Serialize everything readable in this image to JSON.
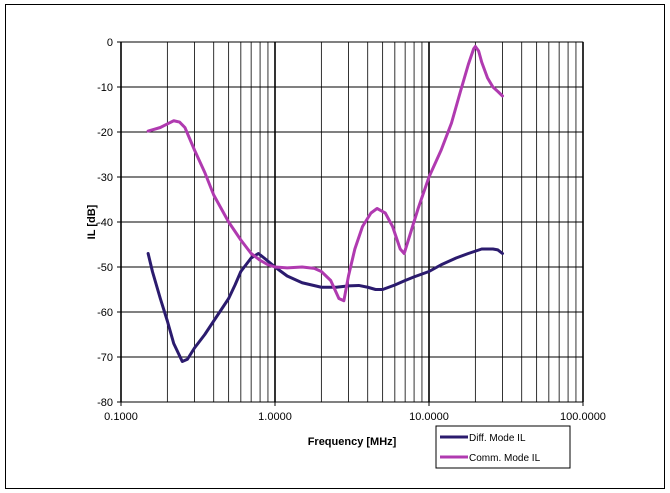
{
  "chart_data": {
    "type": "line",
    "xscale": "log",
    "xlim": [
      0.1,
      100
    ],
    "ylim": [
      -80,
      0
    ],
    "xlabel": "Frequency [MHz]",
    "ylabel": "IL [dB]",
    "grid": true,
    "legend_position": "bottom-right",
    "x_tick_labels": [
      "0.1000",
      "1.0000",
      "10.0000",
      "100.0000"
    ],
    "x_tick_values": [
      0.1,
      1,
      10,
      100
    ],
    "y_ticks": [
      0,
      -10,
      -20,
      -30,
      -40,
      -50,
      -60,
      -70,
      -80
    ],
    "series": [
      {
        "name": "Diff. Mode IL",
        "color": "#2b1b6e",
        "points": [
          [
            0.15,
            -47
          ],
          [
            0.16,
            -51
          ],
          [
            0.18,
            -57
          ],
          [
            0.2,
            -62
          ],
          [
            0.22,
            -67
          ],
          [
            0.25,
            -71
          ],
          [
            0.27,
            -70.5
          ],
          [
            0.3,
            -68
          ],
          [
            0.35,
            -65
          ],
          [
            0.4,
            -62
          ],
          [
            0.5,
            -57
          ],
          [
            0.55,
            -54
          ],
          [
            0.6,
            -51
          ],
          [
            0.7,
            -48
          ],
          [
            0.78,
            -47
          ],
          [
            0.85,
            -48
          ],
          [
            1.0,
            -50
          ],
          [
            1.2,
            -52
          ],
          [
            1.5,
            -53.5
          ],
          [
            2.0,
            -54.5
          ],
          [
            2.5,
            -54.5
          ],
          [
            3.0,
            -54.2
          ],
          [
            3.5,
            -54.1
          ],
          [
            4.0,
            -54.5
          ],
          [
            4.5,
            -55
          ],
          [
            5.0,
            -55
          ],
          [
            6.0,
            -54
          ],
          [
            7.0,
            -53
          ],
          [
            8.0,
            -52.2
          ],
          [
            10.0,
            -51
          ],
          [
            12.0,
            -49.5
          ],
          [
            15.0,
            -48
          ],
          [
            18.0,
            -47
          ],
          [
            22.0,
            -46
          ],
          [
            26.0,
            -46
          ],
          [
            28.0,
            -46.2
          ],
          [
            30.0,
            -47
          ]
        ]
      },
      {
        "name": "Comm. Mode IL",
        "color": "#b03ab0",
        "points": [
          [
            0.15,
            -19.8
          ],
          [
            0.18,
            -19
          ],
          [
            0.2,
            -18.2
          ],
          [
            0.22,
            -17.5
          ],
          [
            0.24,
            -17.8
          ],
          [
            0.26,
            -19
          ],
          [
            0.3,
            -24
          ],
          [
            0.35,
            -29
          ],
          [
            0.4,
            -34
          ],
          [
            0.5,
            -40
          ],
          [
            0.6,
            -44
          ],
          [
            0.7,
            -47
          ],
          [
            0.8,
            -48.5
          ],
          [
            0.9,
            -49.5
          ],
          [
            1.0,
            -50
          ],
          [
            1.2,
            -50.2
          ],
          [
            1.5,
            -50
          ],
          [
            1.8,
            -50.3
          ],
          [
            2.0,
            -51
          ],
          [
            2.3,
            -53
          ],
          [
            2.6,
            -57
          ],
          [
            2.8,
            -57.5
          ],
          [
            3.0,
            -52
          ],
          [
            3.3,
            -46
          ],
          [
            3.7,
            -41
          ],
          [
            4.2,
            -38
          ],
          [
            4.6,
            -37
          ],
          [
            5.2,
            -38
          ],
          [
            5.8,
            -41
          ],
          [
            6.5,
            -46
          ],
          [
            6.9,
            -47
          ],
          [
            7.5,
            -43
          ],
          [
            8.5,
            -37
          ],
          [
            10.0,
            -30
          ],
          [
            12.0,
            -24
          ],
          [
            14.0,
            -18
          ],
          [
            16.0,
            -11
          ],
          [
            18.0,
            -5
          ],
          [
            19.5,
            -1.5
          ],
          [
            20.0,
            -1
          ],
          [
            21.0,
            -2
          ],
          [
            22.0,
            -4.5
          ],
          [
            24.0,
            -8
          ],
          [
            26.0,
            -10
          ],
          [
            28.0,
            -11
          ],
          [
            30.0,
            -12
          ]
        ]
      }
    ]
  }
}
